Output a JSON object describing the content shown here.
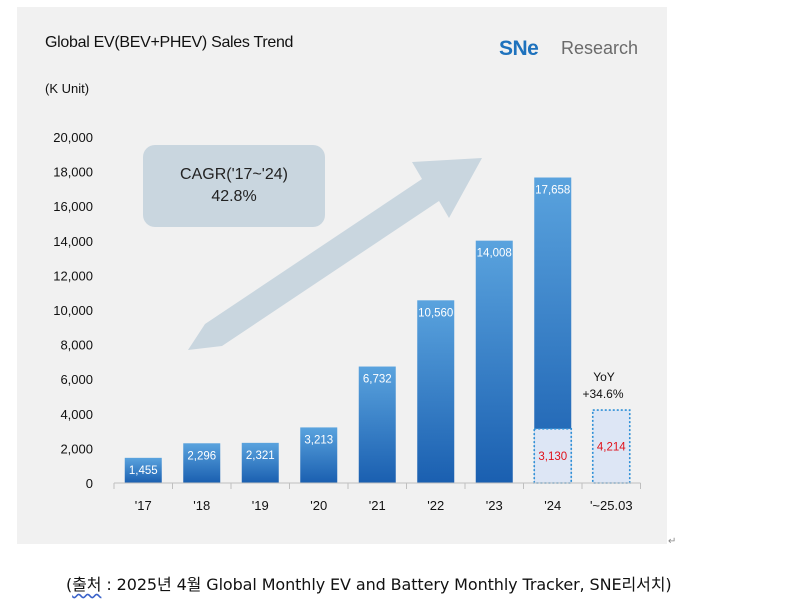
{
  "chart_data": {
    "type": "bar",
    "title": "Global EV(BEV+PHEV) Sales Trend",
    "unit_label": "(K Unit)",
    "brand": {
      "prefix": "SNe",
      "suffix": "Research"
    },
    "categories": [
      "'17",
      "'18",
      "'19",
      "'20",
      "'21",
      "'22",
      "'23",
      "'24",
      "'~25.03"
    ],
    "values": [
      1455,
      2296,
      2321,
      3213,
      6732,
      10560,
      14008,
      17658,
      null
    ],
    "value_labels": [
      "1,455",
      "2,296",
      "2,321",
      "3,213",
      "6,732",
      "10,560",
      "14,008",
      "17,658",
      ""
    ],
    "partial": [
      {
        "category": "'24",
        "value": 3130,
        "label": "3,130"
      },
      {
        "category": "'~25.03",
        "value": 4214,
        "label": "4,214"
      }
    ],
    "yoy": {
      "line1": "YoY",
      "line2": "+34.6%"
    },
    "cagr": {
      "line1": "CAGR('17~'24)",
      "line2": "42.8%"
    },
    "ylim": [
      0,
      20000
    ],
    "yticks": [
      0,
      2000,
      4000,
      6000,
      8000,
      10000,
      12000,
      14000,
      16000,
      18000,
      20000
    ],
    "ytick_labels": [
      "0",
      "2,000",
      "4,000",
      "6,000",
      "8,000",
      "10,000",
      "12,000",
      "14,000",
      "16,000",
      "18,000",
      "20,000"
    ],
    "grid": false,
    "legend": "none",
    "colors": {
      "bar_top": "#5aa3de",
      "bar_bottom": "#1a5fb0",
      "partial_fill": "#dde6f5",
      "partial_border": "#2e8fd6",
      "partial_text": "#e0101a",
      "arrow": "#c9d6df",
      "cagr_box": "#c9d6df",
      "brand_blue": "#1e72bd",
      "brand_gray": "#6b6b6b"
    }
  },
  "caption": {
    "open": "(",
    "source_word": "출처",
    "rest": " : 2025년 4월 Global Monthly EV and Battery Monthly Tracker, SNE리서치)"
  },
  "return_mark": "↵"
}
